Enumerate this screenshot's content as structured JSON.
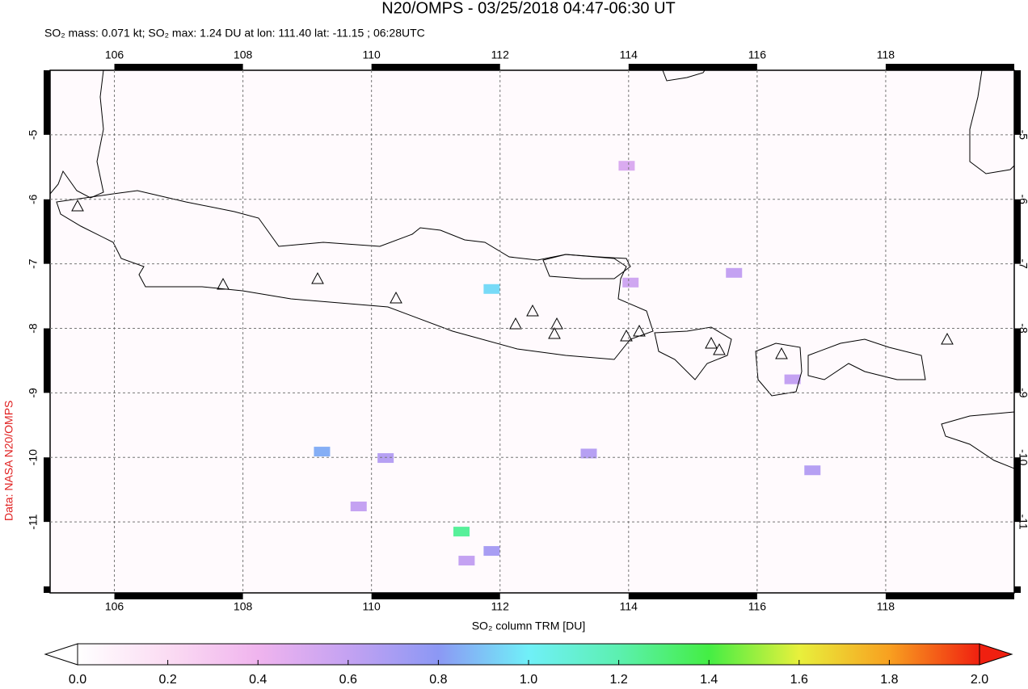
{
  "title": "N20/OMPS - 03/25/2018 04:47-06:30 UT",
  "subtitle": "SO₂ mass: 0.071 kt; SO₂ max: 1.24 DU at lon: 111.40 lat: -11.15 ; 06:28UTC",
  "credit": "Data: NASA N20/OMPS",
  "map": {
    "xlim": [
      105,
      120
    ],
    "ylim": [
      -12.1,
      -4
    ],
    "xticks": [
      106,
      108,
      110,
      112,
      114,
      116,
      118
    ],
    "yticks": [
      -5,
      -6,
      -7,
      -8,
      -9,
      -10,
      -11
    ],
    "grid": true,
    "pixels": [
      {
        "lon": 111.4,
        "lat": -11.15,
        "value": 1.24
      },
      {
        "lon": 111.87,
        "lat": -7.39,
        "value": 0.95
      },
      {
        "lon": 109.23,
        "lat": -9.91,
        "value": 0.85
      },
      {
        "lon": 113.38,
        "lat": -9.94,
        "value": 0.65
      },
      {
        "lon": 116.86,
        "lat": -10.2,
        "value": 0.65
      },
      {
        "lon": 111.87,
        "lat": -11.45,
        "value": 0.7
      },
      {
        "lon": 110.22,
        "lat": -10.01,
        "value": 0.65
      },
      {
        "lon": 114.03,
        "lat": -7.29,
        "value": 0.55
      },
      {
        "lon": 115.64,
        "lat": -7.14,
        "value": 0.6
      },
      {
        "lon": 113.97,
        "lat": -5.48,
        "value": 0.5
      },
      {
        "lon": 109.8,
        "lat": -10.76,
        "value": 0.6
      },
      {
        "lon": 111.48,
        "lat": -11.6,
        "value": 0.6
      },
      {
        "lon": 116.55,
        "lat": -8.79,
        "value": 0.6
      }
    ]
  },
  "colorbar": {
    "label": "SO₂ column TRM [DU]",
    "lim": [
      0,
      2
    ],
    "ticks": [
      {
        "value": 0,
        "label": "0.0"
      },
      {
        "value": 0.2,
        "label": "0.2"
      },
      {
        "value": 0.4,
        "label": "0.4"
      },
      {
        "value": 0.6,
        "label": "0.6"
      },
      {
        "value": 0.8,
        "label": "0.8"
      },
      {
        "value": 1,
        "label": "1.0"
      },
      {
        "value": 1.2,
        "label": "1.2"
      },
      {
        "value": 1.4,
        "label": "1.4"
      },
      {
        "value": 1.6,
        "label": "1.6"
      },
      {
        "value": 1.8,
        "label": "1.8"
      },
      {
        "value": 2,
        "label": "2.0"
      }
    ]
  }
}
